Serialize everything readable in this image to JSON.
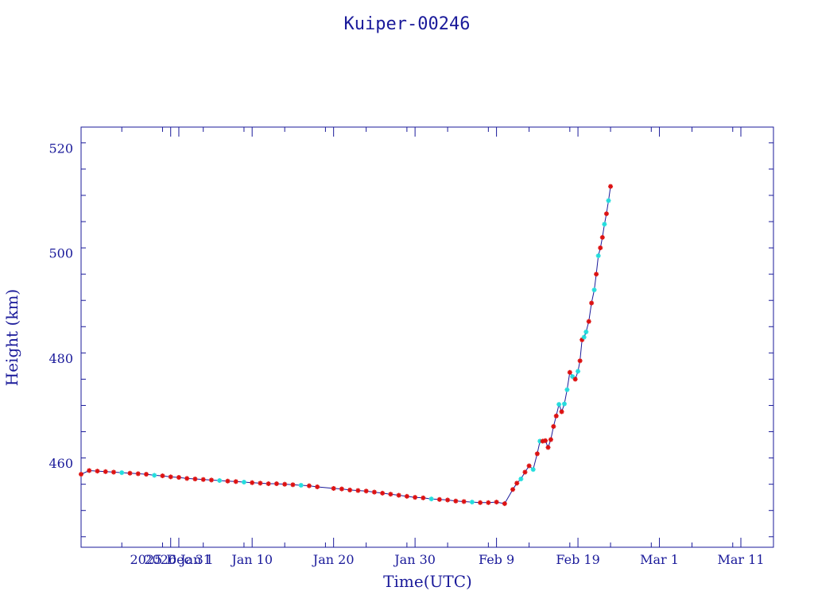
{
  "chart_data": {
    "type": "line",
    "title": "Kuiper-00246",
    "xlabel": "Time(UTC)",
    "ylabel": "Height (km)",
    "x_unit": "date (UTC)",
    "xlim": [
      "2025-12-20",
      "2026-03-15"
    ],
    "ylim": [
      444,
      524
    ],
    "grid": false,
    "x_ticks": [
      {
        "date": "2025-12-31",
        "label": "2025 Dec 31"
      },
      {
        "date": "2026-01-01",
        "label": "2026 Jan 1"
      },
      {
        "date": "2026-01-10",
        "label": "Jan 10"
      },
      {
        "date": "2026-01-20",
        "label": "Jan 20"
      },
      {
        "date": "2026-01-30",
        "label": "Jan 30"
      },
      {
        "date": "2026-02-09",
        "label": "Feb  9"
      },
      {
        "date": "2026-02-19",
        "label": "Feb 19"
      },
      {
        "date": "2026-03-01",
        "label": "Mar  1"
      },
      {
        "date": "2026-03-11",
        "label": "Mar 11"
      }
    ],
    "y_ticks": [
      460,
      480,
      500,
      520
    ],
    "colors": {
      "axes": "#1a1a9a",
      "line": "#1a1a9a",
      "marker_primary": "#dd1111",
      "marker_secondary": "#22dddd"
    },
    "series": [
      {
        "marker": "asterisk",
        "points": [
          {
            "x": "2025-12-20",
            "y": 457.9,
            "c": "r"
          },
          {
            "x": "2025-12-21",
            "y": 458.6,
            "c": "r"
          },
          {
            "x": "2025-12-22",
            "y": 458.5,
            "c": "r"
          },
          {
            "x": "2025-12-23",
            "y": 458.4,
            "c": "r"
          },
          {
            "x": "2025-12-24",
            "y": 458.3,
            "c": "r"
          },
          {
            "x": "2025-12-25",
            "y": 458.2,
            "c": "c"
          },
          {
            "x": "2025-12-26",
            "y": 458.1,
            "c": "r"
          },
          {
            "x": "2025-12-27",
            "y": 458.0,
            "c": "r"
          },
          {
            "x": "2025-12-28",
            "y": 457.9,
            "c": "r"
          },
          {
            "x": "2025-12-29",
            "y": 457.7,
            "c": "c"
          },
          {
            "x": "2025-12-30",
            "y": 457.6,
            "c": "r"
          },
          {
            "x": "2025-12-31",
            "y": 457.4,
            "c": "r"
          },
          {
            "x": "2026-01-01",
            "y": 457.3,
            "c": "r"
          },
          {
            "x": "2026-01-02",
            "y": 457.1,
            "c": "r"
          },
          {
            "x": "2026-01-03",
            "y": 457.0,
            "c": "r"
          },
          {
            "x": "2026-01-04",
            "y": 456.9,
            "c": "r"
          },
          {
            "x": "2026-01-05",
            "y": 456.8,
            "c": "r"
          },
          {
            "x": "2026-01-06",
            "y": 456.7,
            "c": "c"
          },
          {
            "x": "2026-01-07",
            "y": 456.6,
            "c": "r"
          },
          {
            "x": "2026-01-08",
            "y": 456.5,
            "c": "r"
          },
          {
            "x": "2026-01-09",
            "y": 456.4,
            "c": "c"
          },
          {
            "x": "2026-01-10",
            "y": 456.3,
            "c": "r"
          },
          {
            "x": "2026-01-11",
            "y": 456.2,
            "c": "r"
          },
          {
            "x": "2026-01-12",
            "y": 456.1,
            "c": "r"
          },
          {
            "x": "2026-01-13",
            "y": 456.1,
            "c": "r"
          },
          {
            "x": "2026-01-14",
            "y": 456.0,
            "c": "r"
          },
          {
            "x": "2026-01-15",
            "y": 455.9,
            "c": "r"
          },
          {
            "x": "2026-01-16",
            "y": 455.8,
            "c": "c"
          },
          {
            "x": "2026-01-17",
            "y": 455.7,
            "c": "r"
          },
          {
            "x": "2026-01-18",
            "y": 455.5,
            "c": "r"
          },
          {
            "x": "2026-01-20",
            "y": 455.2,
            "c": "r"
          },
          {
            "x": "2026-01-21",
            "y": 455.1,
            "c": "r"
          },
          {
            "x": "2026-01-22",
            "y": 454.9,
            "c": "r"
          },
          {
            "x": "2026-01-23",
            "y": 454.8,
            "c": "r"
          },
          {
            "x": "2026-01-24",
            "y": 454.7,
            "c": "r"
          },
          {
            "x": "2026-01-25",
            "y": 454.5,
            "c": "r"
          },
          {
            "x": "2026-01-26",
            "y": 454.3,
            "c": "r"
          },
          {
            "x": "2026-01-27",
            "y": 454.1,
            "c": "r"
          },
          {
            "x": "2026-01-28",
            "y": 453.9,
            "c": "r"
          },
          {
            "x": "2026-01-29",
            "y": 453.7,
            "c": "r"
          },
          {
            "x": "2026-01-30",
            "y": 453.5,
            "c": "r"
          },
          {
            "x": "2026-01-31",
            "y": 453.4,
            "c": "r"
          },
          {
            "x": "2026-02-01",
            "y": 453.2,
            "c": "c"
          },
          {
            "x": "2026-02-02",
            "y": 453.1,
            "c": "r"
          },
          {
            "x": "2026-02-03",
            "y": 453.0,
            "c": "r"
          },
          {
            "x": "2026-02-04",
            "y": 452.8,
            "c": "r"
          },
          {
            "x": "2026-02-05",
            "y": 452.7,
            "c": "r"
          },
          {
            "x": "2026-02-06",
            "y": 452.6,
            "c": "c"
          },
          {
            "x": "2026-02-07",
            "y": 452.5,
            "c": "r"
          },
          {
            "x": "2026-02-08",
            "y": 452.5,
            "c": "r"
          },
          {
            "x": "2026-02-09",
            "y": 452.6,
            "c": "r"
          },
          {
            "x": "2026-02-10",
            "y": 452.3,
            "c": "r"
          },
          {
            "x": "2026-02-11",
            "y": 455.0,
            "c": "r"
          },
          {
            "x": "2026-02-11T12:00",
            "y": 456.2,
            "c": "r"
          },
          {
            "x": "2026-02-12",
            "y": 457.0,
            "c": "c"
          },
          {
            "x": "2026-02-12T12:00",
            "y": 458.3,
            "c": "r"
          },
          {
            "x": "2026-02-13",
            "y": 459.5,
            "c": "r"
          },
          {
            "x": "2026-02-13T12:00",
            "y": 458.8,
            "c": "c"
          },
          {
            "x": "2026-02-14",
            "y": 461.8,
            "c": "r"
          },
          {
            "x": "2026-02-14T08:00",
            "y": 464.2,
            "c": "c"
          },
          {
            "x": "2026-02-14T16:00",
            "y": 464.2,
            "c": "r"
          },
          {
            "x": "2026-02-15",
            "y": 464.3,
            "c": "r"
          },
          {
            "x": "2026-02-15T08:00",
            "y": 463.0,
            "c": "r"
          },
          {
            "x": "2026-02-15T16:00",
            "y": 464.5,
            "c": "r"
          },
          {
            "x": "2026-02-16",
            "y": 467.0,
            "c": "r"
          },
          {
            "x": "2026-02-16T08:00",
            "y": 469.0,
            "c": "r"
          },
          {
            "x": "2026-02-16T16:00",
            "y": 471.2,
            "c": "c"
          },
          {
            "x": "2026-02-17",
            "y": 469.8,
            "c": "r"
          },
          {
            "x": "2026-02-17T08:00",
            "y": 471.3,
            "c": "c"
          },
          {
            "x": "2026-02-17T16:00",
            "y": 474.0,
            "c": "c"
          },
          {
            "x": "2026-02-18",
            "y": 477.3,
            "c": "r"
          },
          {
            "x": "2026-02-18T08:00",
            "y": 476.5,
            "c": "c"
          },
          {
            "x": "2026-02-18T16:00",
            "y": 476.0,
            "c": "r"
          },
          {
            "x": "2026-02-19",
            "y": 477.5,
            "c": "c"
          },
          {
            "x": "2026-02-19T06:00",
            "y": 479.5,
            "c": "r"
          },
          {
            "x": "2026-02-19T12:00",
            "y": 483.5,
            "c": "r"
          },
          {
            "x": "2026-02-19T18:00",
            "y": 484.0,
            "c": "c"
          },
          {
            "x": "2026-02-20",
            "y": 485.0,
            "c": "c"
          },
          {
            "x": "2026-02-20T08:00",
            "y": 487.0,
            "c": "r"
          },
          {
            "x": "2026-02-20T16:00",
            "y": 490.5,
            "c": "r"
          },
          {
            "x": "2026-02-21",
            "y": 493.0,
            "c": "c"
          },
          {
            "x": "2026-02-21T06:00",
            "y": 496.0,
            "c": "r"
          },
          {
            "x": "2026-02-21T12:00",
            "y": 499.5,
            "c": "c"
          },
          {
            "x": "2026-02-21T18:00",
            "y": 501.0,
            "c": "r"
          },
          {
            "x": "2026-02-22",
            "y": 503.0,
            "c": "r"
          },
          {
            "x": "2026-02-22T06:00",
            "y": 505.5,
            "c": "c"
          },
          {
            "x": "2026-02-22T12:00",
            "y": 507.5,
            "c": "r"
          },
          {
            "x": "2026-02-22T18:00",
            "y": 510.0,
            "c": "c"
          },
          {
            "x": "2026-02-23",
            "y": 512.7,
            "c": "r"
          }
        ]
      }
    ]
  }
}
